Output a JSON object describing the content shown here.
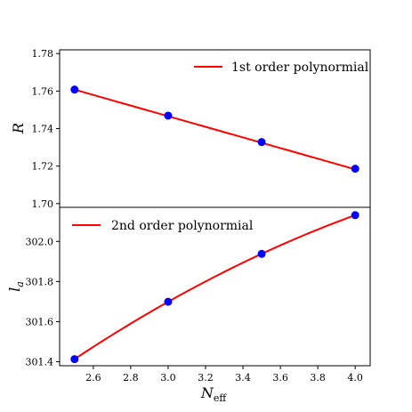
{
  "chart_data": [
    {
      "type": "scatter",
      "ylabel_main": "R",
      "x": [
        2.5,
        3.0,
        3.5,
        4.0
      ],
      "points": [
        1.7608,
        1.7469,
        1.7328,
        1.7186
      ],
      "fit_curve": [
        1.7608,
        1.7466,
        1.7324,
        1.7183
      ],
      "ylim": [
        1.698,
        1.782
      ],
      "yticks": [
        "1.70",
        "1.72",
        "1.74",
        "1.76",
        "1.78"
      ],
      "legend": "1st order polynormial",
      "legend_position": "top-right",
      "point_color": "#0000ff",
      "line_color": "#ff0000"
    },
    {
      "type": "scatter",
      "ylabel_main": "l",
      "ylabel_sub": "a",
      "x": [
        2.5,
        3.0,
        3.5,
        4.0
      ],
      "points": [
        301.413,
        301.699,
        301.938,
        302.131
      ],
      "fit_curve": [
        301.413,
        301.699,
        301.938,
        302.131
      ],
      "ylim": [
        301.38,
        302.17
      ],
      "yticks": [
        "301.4",
        "301.6",
        "301.8",
        "302.0"
      ],
      "legend": "2nd order polynormial",
      "legend_position": "top-left",
      "point_color": "#0000ff",
      "line_color": "#ff0000"
    }
  ],
  "x_axis": {
    "label_main": "N",
    "label_sub": "eff",
    "xlim": [
      2.42,
      4.08
    ],
    "xticks": [
      "2.6",
      "2.8",
      "3.0",
      "3.2",
      "3.4",
      "3.6",
      "3.8",
      "4.0"
    ]
  }
}
